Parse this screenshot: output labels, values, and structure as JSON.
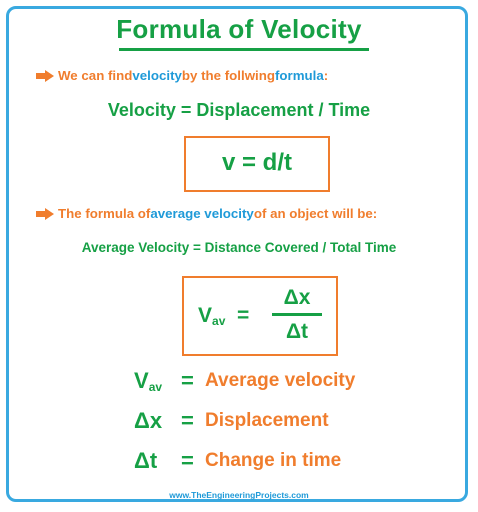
{
  "title": "Formula of Velocity",
  "intro": {
    "part1": "We can find ",
    "keyword1": "velocity",
    "part2": " by the follwing ",
    "keyword2": "formula",
    "part3": ":"
  },
  "word_formula": "Velocity = Displacement / Time",
  "symbol_formula": "v = d/t",
  "avg_intro": {
    "part1": "The formula of ",
    "keyword": "average velocity",
    "part2": " of an object will be:"
  },
  "avg_word_formula": "Average Velocity = Distance Covered / Total Time",
  "avg_formula": {
    "lhs_main": "V",
    "lhs_sub": "av",
    "equals": "=",
    "numerator": "Δx",
    "denominator": "Δt"
  },
  "definitions": [
    {
      "symbol": "V",
      "sub": "av",
      "equals": "=",
      "meaning": "Average velocity"
    },
    {
      "symbol": "Δx",
      "sub": "",
      "equals": "=",
      "meaning": "Displacement"
    },
    {
      "symbol": "Δt",
      "sub": "",
      "equals": "=",
      "meaning": "Change in time"
    }
  ],
  "footer": "www.TheEngineeringProjects.com",
  "colors": {
    "green": "#16a045",
    "orange": "#f07d2d",
    "blue": "#1f9ad8",
    "frame": "#39a9e0"
  },
  "icons": {
    "bullet": "arrow-right-icon"
  }
}
